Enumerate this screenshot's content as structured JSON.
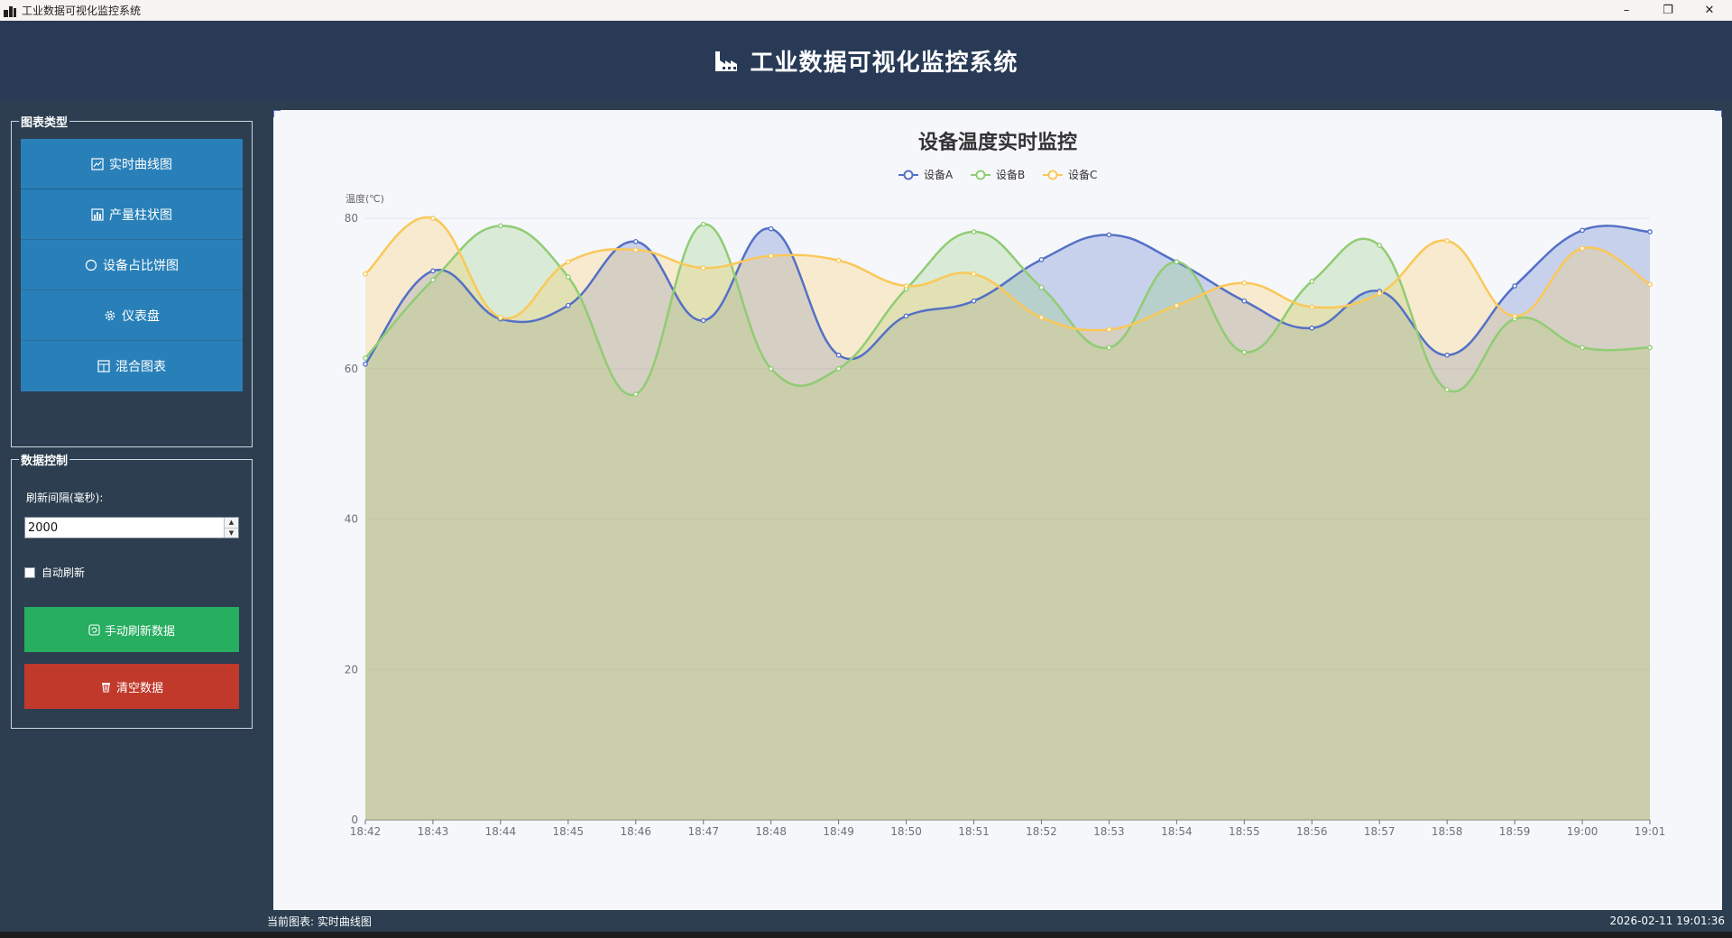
{
  "window": {
    "title": "工业数据可视化监控系统",
    "controls": {
      "minimize": "–",
      "restore": "❐",
      "close": "✕"
    }
  },
  "header": {
    "title": "工业数据可视化监控系统",
    "icon": "factory-icon"
  },
  "sidebar": {
    "chart_type_group": {
      "title": "图表类型",
      "items": [
        {
          "label": "实时曲线图",
          "icon": "line-chart-icon"
        },
        {
          "label": "产量柱状图",
          "icon": "bar-chart-icon"
        },
        {
          "label": "设备占比饼图",
          "icon": "pie-chart-icon"
        },
        {
          "label": "仪表盘",
          "icon": "gear-icon"
        },
        {
          "label": "混合图表",
          "icon": "mixed-chart-icon"
        }
      ]
    },
    "data_control_group": {
      "title": "数据控制",
      "interval_label": "刷新间隔(毫秒):",
      "interval_value": "2000",
      "auto_refresh_label": "自动刷新",
      "auto_refresh_checked": false,
      "manual_refresh_label": "手动刷新数据",
      "clear_label": "清空数据"
    }
  },
  "colors": {
    "seriesA": "#5470c6",
    "seriesB": "#91cc75",
    "seriesC": "#fac858",
    "refresh_button": "#27ae60",
    "clear_button": "#c0392b",
    "chart_type_button": "#2980b9"
  },
  "chart_data": {
    "type": "line",
    "area": true,
    "smooth": true,
    "title": "设备温度实时监控",
    "ylabel": "温度(℃)",
    "xlabel": "",
    "ylim": [
      0,
      80
    ],
    "yticks": [
      0,
      20,
      40,
      60,
      80
    ],
    "legend_position": "top-center",
    "grid": true,
    "categories": [
      "18:42",
      "18:43",
      "18:44",
      "18:45",
      "18:46",
      "18:47",
      "18:48",
      "18:49",
      "18:50",
      "18:51",
      "18:52",
      "18:53",
      "18:54",
      "18:55",
      "18:56",
      "18:57",
      "18:58",
      "18:59",
      "19:00",
      "19:01"
    ],
    "series": [
      {
        "name": "设备A",
        "values": [
          60.6,
          73.0,
          66.6,
          68.4,
          76.9,
          66.4,
          78.6,
          61.8,
          67.0,
          69.0,
          74.5,
          77.8,
          74.2,
          69.0,
          65.4,
          70.3,
          61.8,
          71.0,
          78.4,
          78.2
        ]
      },
      {
        "name": "设备B",
        "values": [
          61.4,
          71.8,
          79.0,
          72.2,
          56.6,
          79.2,
          60.0,
          60.0,
          70.6,
          78.2,
          70.8,
          62.8,
          74.2,
          62.2,
          71.6,
          76.4,
          57.2,
          66.6,
          62.8,
          62.8
        ]
      },
      {
        "name": "设备C",
        "values": [
          72.6,
          80.0,
          66.8,
          74.2,
          75.8,
          73.4,
          75.0,
          74.4,
          71.0,
          72.6,
          66.8,
          65.2,
          68.4,
          71.4,
          68.2,
          70.0,
          77.0,
          67.0,
          76.0,
          71.2
        ]
      }
    ]
  },
  "status": {
    "current_chart": "当前图表: 实时曲线图",
    "datetime": "2026-02-11 19:01:36"
  }
}
